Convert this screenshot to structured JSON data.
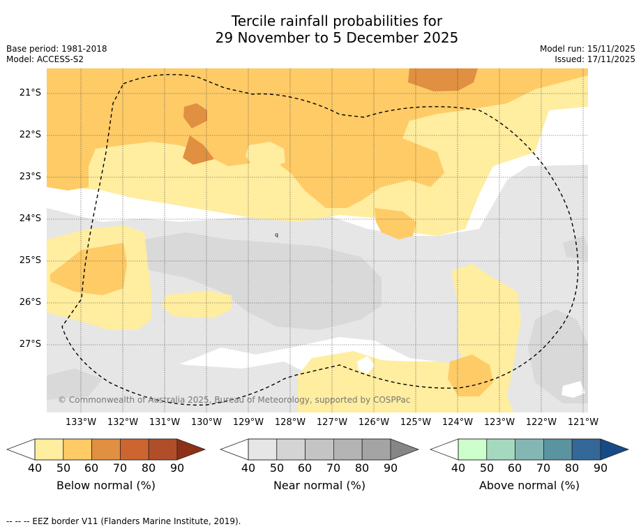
{
  "title": {
    "line1": "Tercile rainfall probabilities for",
    "line2": "29 November to 5 December 2025"
  },
  "meta": {
    "base_period": "Base period: 1981-2018",
    "model": "Model: ACCESS-S2",
    "model_run": "Model run: 15/11/2025",
    "issued": "Issued: 17/11/2025"
  },
  "map": {
    "lat_labels": [
      "21°S",
      "22°S",
      "23°S",
      "24°S",
      "25°S",
      "26°S",
      "27°S"
    ],
    "lon_labels": [
      "133°W",
      "132°W",
      "131°W",
      "130°W",
      "129°W",
      "128°W",
      "127°W",
      "126°W",
      "125°W",
      "124°W",
      "123°W",
      "122°W",
      "121°W"
    ],
    "copyright": "© Commonwealth of Australia 2025, Bureau of Meteorology, supported by COSPPac",
    "colors": {
      "below_50": "#ffeda0",
      "below_60": "#fecb66",
      "below_70": "#e09040",
      "near_50": "#e6e6e6",
      "near_60": "#d9d9d9"
    }
  },
  "colorbars": [
    {
      "name": "below",
      "label": "Below normal (%)",
      "ticks": [
        "40",
        "50",
        "60",
        "70",
        "80",
        "90"
      ],
      "colors": [
        "#ffeda0",
        "#fecb66",
        "#e09040",
        "#cd6531",
        "#b04e2a",
        "#8e3018"
      ]
    },
    {
      "name": "near",
      "label": "Near normal (%)",
      "ticks": [
        "40",
        "50",
        "60",
        "70",
        "80",
        "90"
      ],
      "colors": [
        "#e6e6e6",
        "#d4d4d4",
        "#c4c4c4",
        "#b4b4b4",
        "#a4a4a4",
        "#868686"
      ]
    },
    {
      "name": "above",
      "label": "Above normal (%)",
      "ticks": [
        "40",
        "50",
        "60",
        "70",
        "80",
        "90"
      ],
      "colors": [
        "#ccffcc",
        "#a4d9bf",
        "#84b7b3",
        "#5a94a0",
        "#336898",
        "#174a86"
      ]
    }
  ],
  "footnote": "-- -- -- EEZ border V11 (Flanders Marine Institute, 2019)."
}
